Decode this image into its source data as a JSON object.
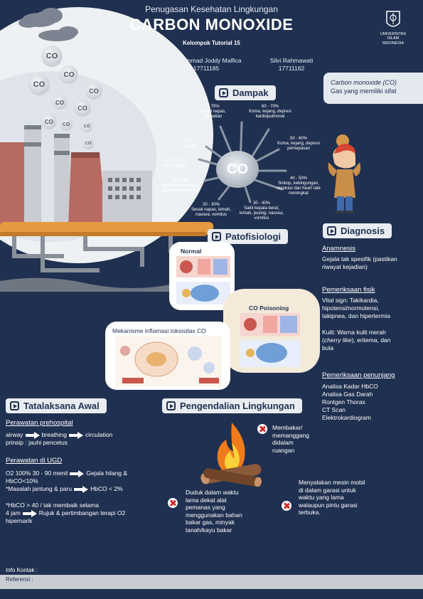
{
  "header": {
    "subtitle": "Penugasan Kesehatan Lingkungan",
    "title": "CARBON MONOXIDE",
    "kelompok": "Kelompok Tutorial 15",
    "members": [
      {
        "name": "Gusta Nariski",
        "id": "17711189"
      },
      {
        "name": "Muhammad Joddy Malfica",
        "id": "17711185"
      },
      {
        "name": "Silvi Rahmawati",
        "id": "17711162"
      }
    ],
    "logo_text": [
      "UNIVERSITAS",
      "ISLAM",
      "INDONESIA"
    ]
  },
  "co_bubbles": [
    "CO",
    "CO",
    "CO",
    "CO",
    "CO",
    "CO",
    "CO",
    "CO",
    "CO",
    "CO"
  ],
  "definition": {
    "line1": "Carbon monoxide (CO)",
    "line2": "Gas yang memiliki sifat"
  },
  "dampak": {
    "heading": "Dampak",
    "center": "CO",
    "items": [
      {
        "pct": "> 70%",
        "text": "Gagal napas, kematian"
      },
      {
        "pct": "60 - 70%",
        "text": "Koma, kejang, depresi kardiopulmonal"
      },
      {
        "pct": "< 1%",
        "text": "normal"
      },
      {
        "pct": "50 - 60%",
        "text": "Koma, kejang, depresi pernapasan"
      },
      {
        "pct": "<10%",
        "text": "tanpa gejala"
      },
      {
        "pct": "10 - 20%",
        "text": "Sakit kepala, lemah, telinga berdenging"
      },
      {
        "pct": "40 - 50%",
        "text": "Sinkop, kebingungan, respirasi dan heart rate meningkat"
      },
      {
        "pct": "20 - 30%",
        "text": "Sesak napas, lemah, nausea, vomitus"
      },
      {
        "pct": "30 - 40%",
        "text": "Sakit kepala berat, lemah, pusing, nausea, vomitus"
      }
    ]
  },
  "patofisiologi": {
    "heading": "Patofisiologi",
    "normal": "Normal",
    "poisoning": "CO Poisoning",
    "mekanisme": "Mekanisme inflamasi toksisitas CO"
  },
  "diagnosis": {
    "heading": "Diagnosis",
    "anamnesis_h": "Anamnesis",
    "anamnesis_t": [
      "Gejala tak spesifik (pastikan",
      "riwayat kejadian)"
    ],
    "fisik_h": "Pemeriksaan fisik",
    "fisik_t": [
      "Vital sign: Takikardia,",
      "hipotensi/normotensi,",
      "takipnea, dan hipertermia"
    ],
    "kulit_1": "Kulit: Warna kulit merah",
    "kulit_2a": "(",
    "kulit_2b": "cherry like",
    "kulit_2c": "), eritema, dan",
    "kulit_3": "bula",
    "penunjang_h": "Pemeriksaan penunjang",
    "penunjang_t": [
      "Analisa Kadar HbCO",
      "Analisa Gas Darah",
      "Rontgen Thorax",
      "CT Scan",
      "Elektrokardiogram"
    ]
  },
  "tatalaksana": {
    "heading": "Tatalaksana Awal",
    "pre_h": "Perawatan prehospital",
    "pre_flow": [
      "airway",
      "breathing",
      "circulation"
    ],
    "pre_prinsip": "prinsip : jauhi pencetus",
    "ugd_h": "Perawatan di UGD",
    "ugd_1a": "O2 100% 30 - 90 menit",
    "ugd_1b": "Gejala hilang &",
    "ugd_2": "HbCO<10%",
    "ugd_3a": "*Masalah jantung & paru",
    "ugd_3b": "HbCO < 2%",
    "ugd_4": "*HbCO > 40 / tak membaik selama",
    "ugd_5a": "4 jam",
    "ugd_5b": "Rujuk & pertimbangan terapi O2",
    "ugd_6": "hipernarik"
  },
  "pengendalian": {
    "heading": "Pengendalian Lingkungan",
    "item1": [
      "Membakar/",
      "memanggang",
      "didalam",
      "ruangan"
    ],
    "item2": [
      "Duduk dalam waktu",
      "lama dekat alat",
      "pemanas yang",
      "menggunakan bahan",
      "bakar gas, minyak",
      "tanah/kayu bakar"
    ],
    "item3": [
      "Menyalakan mesin mobil",
      "di dalam garasi untuk",
      "waktu yang lama",
      "walaupun pintu garasi",
      "terbuka."
    ]
  },
  "footer": {
    "kontak": "Info Kontak :",
    "referensi": "Referensi :"
  },
  "colors": {
    "background": "#1f3050",
    "badge": "#e9edf2",
    "footer_bar": "#c9cdd3",
    "xmark": "#d32a2a"
  }
}
